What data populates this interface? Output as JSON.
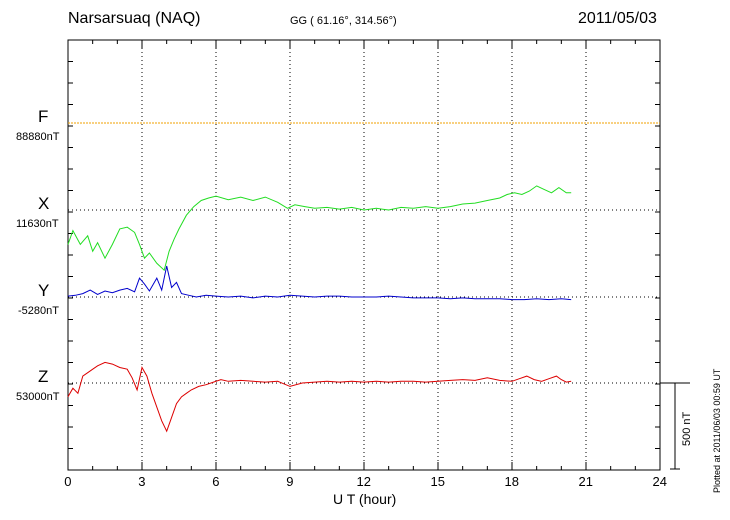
{
  "header": {
    "station": "Narsarsuaq (NAQ)",
    "coords": "GG ( 61.16°, 314.56°)",
    "date": "2011/05/03"
  },
  "footer": {
    "plotted": "Plotted at 2011/06/03 00:59 UT"
  },
  "scale": {
    "label": "500 nT",
    "value_nT": 500
  },
  "chart_data": {
    "type": "line",
    "title": "Narsarsuaq (NAQ)",
    "xlabel": "U T (hour)",
    "ylabel": "",
    "xlim": [
      0,
      24
    ],
    "xticks": [
      0,
      3,
      6,
      9,
      12,
      15,
      18,
      21,
      24
    ],
    "grid": true,
    "series": [
      {
        "name": "F",
        "baseline_label": "88880nT",
        "baseline_nT": 88880,
        "color": "#f0a000",
        "x": [
          0,
          24
        ],
        "y_offset_nT": [
          0,
          0
        ]
      },
      {
        "name": "X",
        "baseline_label": "11630nT",
        "baseline_nT": 11630,
        "color": "#22dd22",
        "x": [
          0,
          0.2,
          0.5,
          0.8,
          1.0,
          1.2,
          1.5,
          1.8,
          2.1,
          2.4,
          2.7,
          2.9,
          3.1,
          3.3,
          3.6,
          3.9,
          4.1,
          4.3,
          4.5,
          4.8,
          5.1,
          5.4,
          5.7,
          6.0,
          6.5,
          7.0,
          7.5,
          8.0,
          8.5,
          8.9,
          9.2,
          9.6,
          10.0,
          10.5,
          11.0,
          11.5,
          12.0,
          12.5,
          13.0,
          13.5,
          14.0,
          14.5,
          15.0,
          15.5,
          16.0,
          16.5,
          17.0,
          17.5,
          17.8,
          18.1,
          18.4,
          18.7,
          19.0,
          19.3,
          19.6,
          19.9,
          20.2,
          20.4
        ],
        "y_offset_nT": [
          -200,
          -120,
          -200,
          -150,
          -240,
          -190,
          -280,
          -200,
          -110,
          -100,
          -130,
          -200,
          -280,
          -250,
          -310,
          -350,
          -240,
          -170,
          -110,
          -30,
          20,
          55,
          70,
          80,
          60,
          75,
          55,
          75,
          45,
          10,
          30,
          20,
          10,
          15,
          5,
          15,
          0,
          10,
          0,
          15,
          10,
          20,
          10,
          20,
          35,
          40,
          55,
          70,
          90,
          100,
          90,
          110,
          140,
          120,
          100,
          130,
          100,
          100
        ]
      },
      {
        "name": "Y",
        "baseline_label": "-5280nT",
        "baseline_nT": -5280,
        "color": "#0000cc",
        "x": [
          0,
          0.3,
          0.6,
          0.9,
          1.2,
          1.5,
          1.8,
          2.1,
          2.4,
          2.7,
          2.9,
          3.1,
          3.3,
          3.6,
          3.8,
          4.0,
          4.2,
          4.4,
          4.6,
          4.9,
          5.2,
          5.6,
          6.0,
          6.5,
          7.0,
          7.5,
          8.0,
          8.5,
          9.0,
          9.5,
          10.0,
          10.5,
          11.0,
          11.5,
          12.0,
          12.5,
          13.0,
          13.5,
          14.0,
          14.5,
          15.0,
          15.5,
          16.0,
          16.5,
          17.0,
          17.5,
          18.0,
          18.5,
          19.0,
          19.5,
          20.0,
          20.4
        ],
        "y_offset_nT": [
          5,
          10,
          20,
          40,
          15,
          35,
          25,
          40,
          50,
          30,
          110,
          75,
          35,
          110,
          40,
          180,
          55,
          85,
          20,
          10,
          0,
          10,
          5,
          0,
          5,
          -5,
          5,
          0,
          10,
          5,
          0,
          5,
          5,
          0,
          0,
          0,
          5,
          0,
          -5,
          -5,
          -5,
          -10,
          -5,
          -10,
          -10,
          -10,
          -15,
          -15,
          -10,
          -15,
          -10,
          -15
        ]
      },
      {
        "name": "Z",
        "baseline_label": "53000nT",
        "baseline_nT": 53000,
        "color": "#dd0000",
        "x": [
          0,
          0.2,
          0.4,
          0.6,
          0.8,
          1.0,
          1.2,
          1.5,
          1.8,
          2.1,
          2.4,
          2.6,
          2.8,
          3.0,
          3.2,
          3.4,
          3.6,
          3.8,
          4.0,
          4.2,
          4.4,
          4.6,
          4.8,
          5.0,
          5.3,
          5.6,
          5.9,
          6.2,
          6.5,
          7.0,
          7.5,
          8.0,
          8.5,
          9.0,
          9.5,
          10.0,
          10.5,
          11.0,
          11.5,
          12.0,
          12.5,
          13.0,
          13.5,
          14.0,
          14.5,
          15.0,
          15.5,
          16.0,
          16.5,
          17.0,
          17.5,
          18.0,
          18.3,
          18.6,
          18.9,
          19.2,
          19.5,
          19.8,
          20.0,
          20.2,
          20.4
        ],
        "y_offset_nT": [
          -80,
          -30,
          -60,
          40,
          60,
          80,
          100,
          120,
          110,
          90,
          80,
          30,
          -40,
          90,
          40,
          -60,
          -140,
          -220,
          -280,
          -200,
          -120,
          -80,
          -60,
          -40,
          -20,
          -10,
          5,
          20,
          10,
          15,
          10,
          5,
          10,
          -20,
          0,
          5,
          10,
          5,
          10,
          5,
          10,
          5,
          10,
          10,
          5,
          10,
          15,
          20,
          15,
          30,
          15,
          10,
          25,
          40,
          20,
          10,
          25,
          40,
          20,
          5,
          10
        ]
      }
    ]
  }
}
